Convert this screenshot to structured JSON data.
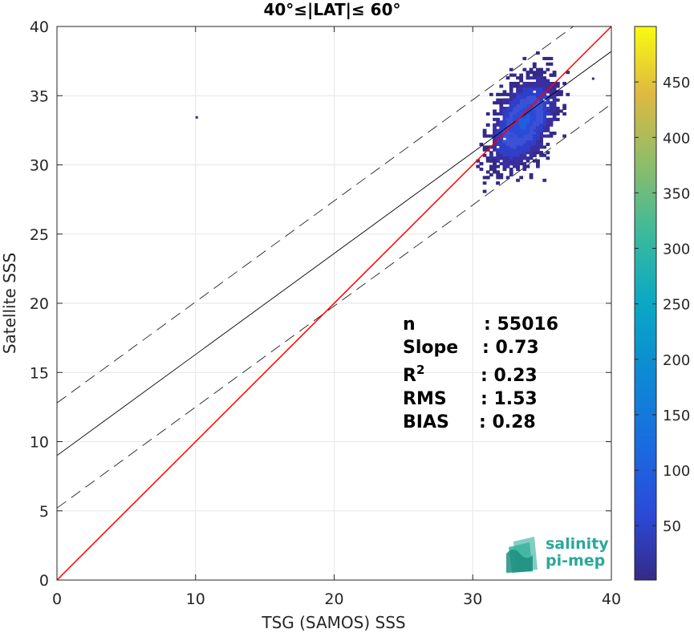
{
  "chart_data": {
    "type": "heatmap",
    "title": "40°≤|LAT|≤ 60°",
    "xlabel": "TSG (SAMOS) SSS",
    "ylabel": "Satellite SSS",
    "xlim": [
      0,
      40
    ],
    "ylim": [
      0,
      40
    ],
    "xticks": [
      "0",
      "10",
      "20",
      "30",
      "40"
    ],
    "yticks": [
      "0",
      "5",
      "10",
      "15",
      "20",
      "25",
      "30",
      "35",
      "40"
    ],
    "grid": true,
    "colorbar": {
      "range": [
        1,
        500
      ],
      "ticks": [
        "50",
        "100",
        "150",
        "200",
        "250",
        "300",
        "350",
        "400",
        "450"
      ],
      "colormap": "parula"
    },
    "lines": {
      "identity": {
        "slope": 1,
        "intercept": 0,
        "color": "#ff0000"
      },
      "regression": {
        "slope": 0.73,
        "intercept": 9.0,
        "color": "#000000"
      },
      "upper_bound": {
        "slope": 0.73,
        "intercept": 12.8,
        "dashed": true
      },
      "lower_bound": {
        "slope": 0.73,
        "intercept": 5.2,
        "dashed": true
      }
    },
    "cluster": {
      "center": [
        33.5,
        33.0
      ],
      "x_extent": [
        29.5,
        38.5
      ],
      "y_extent": [
        26.5,
        39.0
      ]
    },
    "outliers": [
      [
        10.0,
        33.4
      ],
      [
        38.6,
        36.2
      ]
    ],
    "stats": [
      {
        "label": "n",
        "value": ": 55016"
      },
      {
        "label": "Slope",
        "value": ": 0.73"
      },
      {
        "label": "R",
        "sup": "2",
        "value": ": 0.23"
      },
      {
        "label": "RMS",
        "value": ": 1.53"
      },
      {
        "label": "BIAS",
        "value": ": 0.28"
      }
    ]
  },
  "logo": {
    "line1": "salinity",
    "line2": "pi-mep"
  }
}
